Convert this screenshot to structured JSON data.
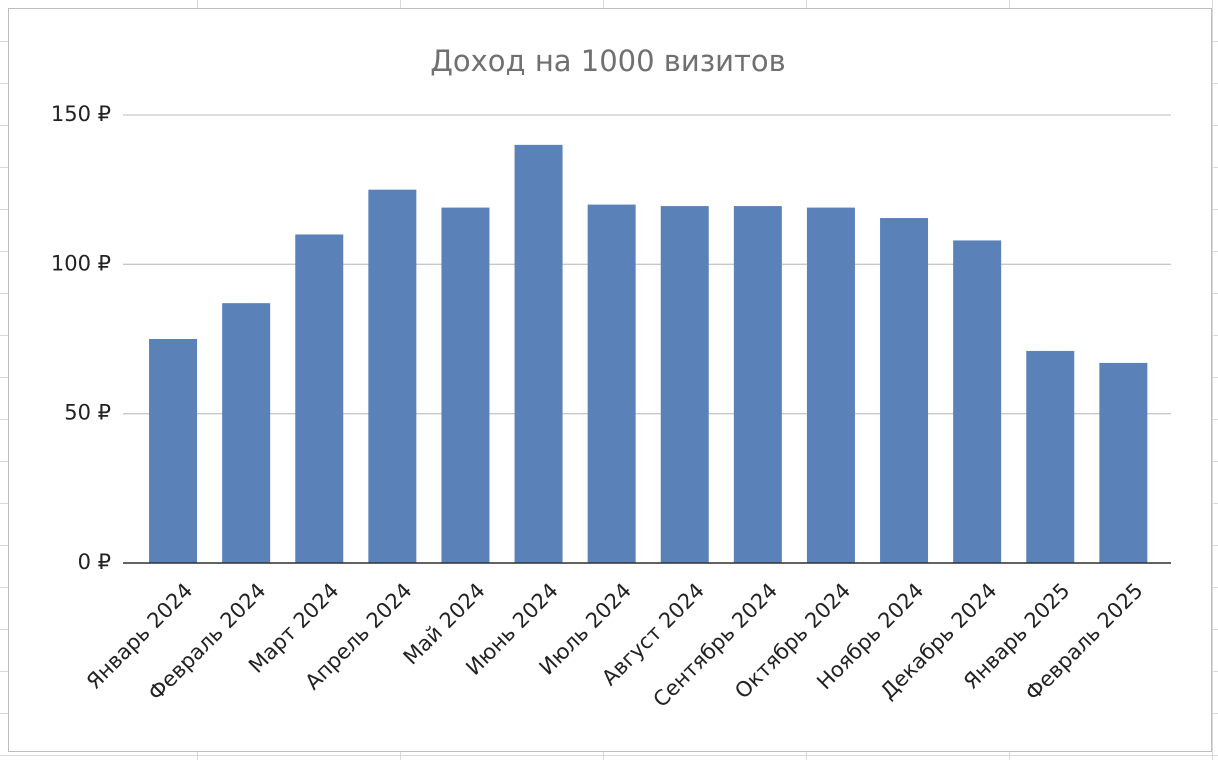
{
  "chart_data": {
    "type": "bar",
    "title": "Доход на 1000 визитов",
    "categories": [
      "Январь 2024",
      "Февраль 2024",
      "Март 2024",
      "Апрель 2024",
      "Май 2024",
      "Июнь 2024",
      "Июль 2024",
      "Август 2024",
      "Сентябрь 2024",
      "Октябрь 2024",
      "Ноябрь 2024",
      "Декабрь 2024",
      "Январь 2025",
      "Февраль 2025"
    ],
    "values": [
      75,
      87,
      110,
      125,
      119,
      140,
      120,
      119.5,
      119.5,
      119,
      115.5,
      108,
      71,
      67
    ],
    "color": "#5a81b8",
    "ylim": [
      0,
      150
    ],
    "yticks": [
      {
        "value": 0,
        "label": "0 ₽"
      },
      {
        "value": 50,
        "label": "50 ₽"
      },
      {
        "value": 100,
        "label": "100 ₽"
      },
      {
        "value": 150,
        "label": "150 ₽"
      }
    ],
    "grid": true
  }
}
